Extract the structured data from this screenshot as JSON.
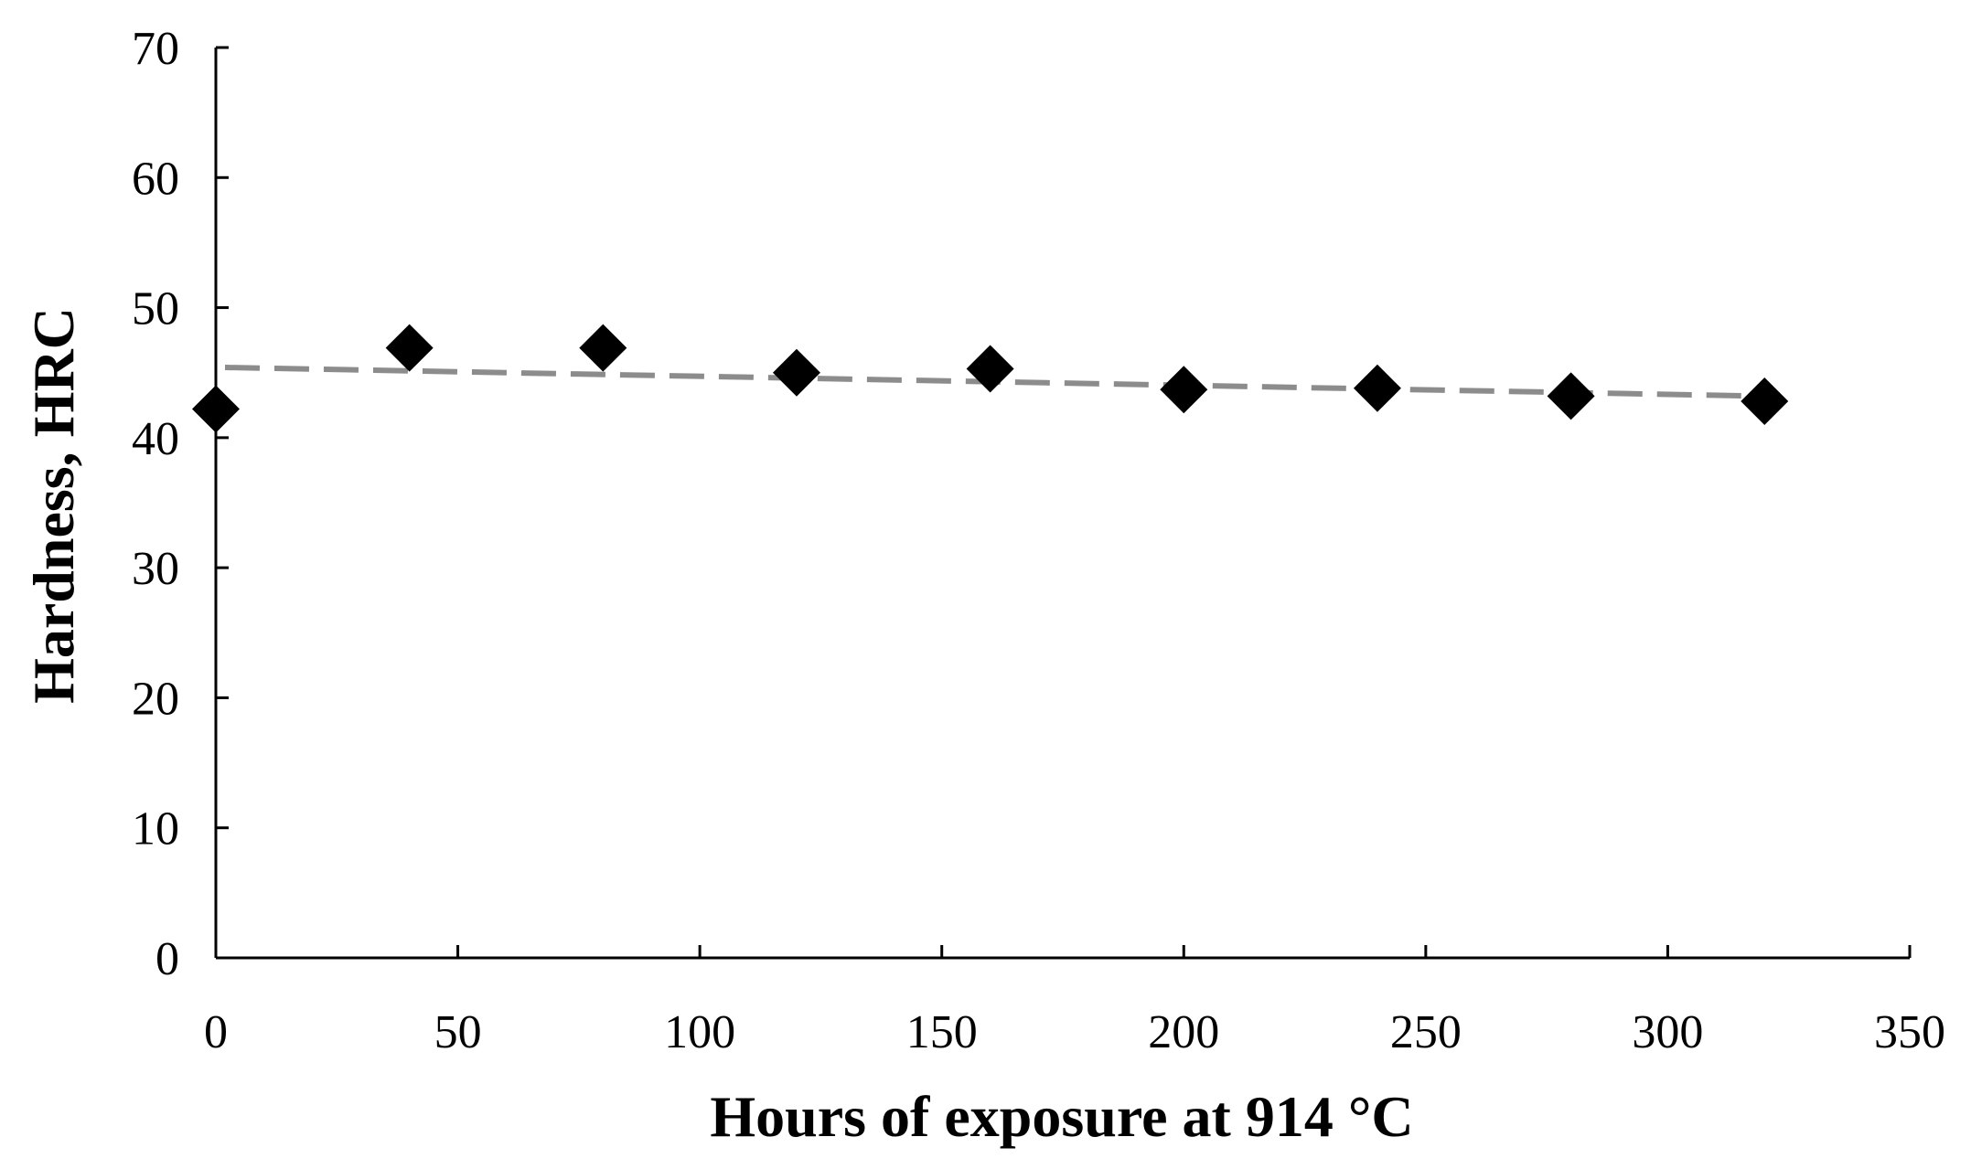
{
  "chart_data": {
    "type": "scatter",
    "title": "",
    "xlabel": "Hours of exposure at 914 °C",
    "ylabel": "Hardness, HRC",
    "xlim": [
      0,
      350
    ],
    "ylim": [
      0,
      70
    ],
    "x_ticks": [
      0,
      50,
      100,
      150,
      200,
      250,
      300,
      350
    ],
    "y_ticks": [
      0,
      10,
      20,
      30,
      40,
      50,
      60,
      70
    ],
    "x_tick_labels": [
      "0",
      "50",
      "100",
      "150",
      "200",
      "250",
      "300",
      "350"
    ],
    "y_tick_labels": [
      "0",
      "10",
      "20",
      "30",
      "40",
      "50",
      "60",
      "70"
    ],
    "grid": false,
    "legend": "none",
    "series": [
      {
        "marker": "diamond",
        "color": "#000000",
        "x": [
          0,
          40,
          80,
          120,
          160,
          200,
          240,
          280,
          320
        ],
        "y": [
          42.2,
          46.9,
          46.9,
          45.0,
          45.3,
          43.7,
          43.8,
          43.2,
          42.8
        ]
      }
    ],
    "trendline": {
      "style": "dashed",
      "color": "#8c8c8c",
      "x": [
        0,
        320
      ],
      "y": [
        45.4,
        43.2
      ]
    }
  }
}
